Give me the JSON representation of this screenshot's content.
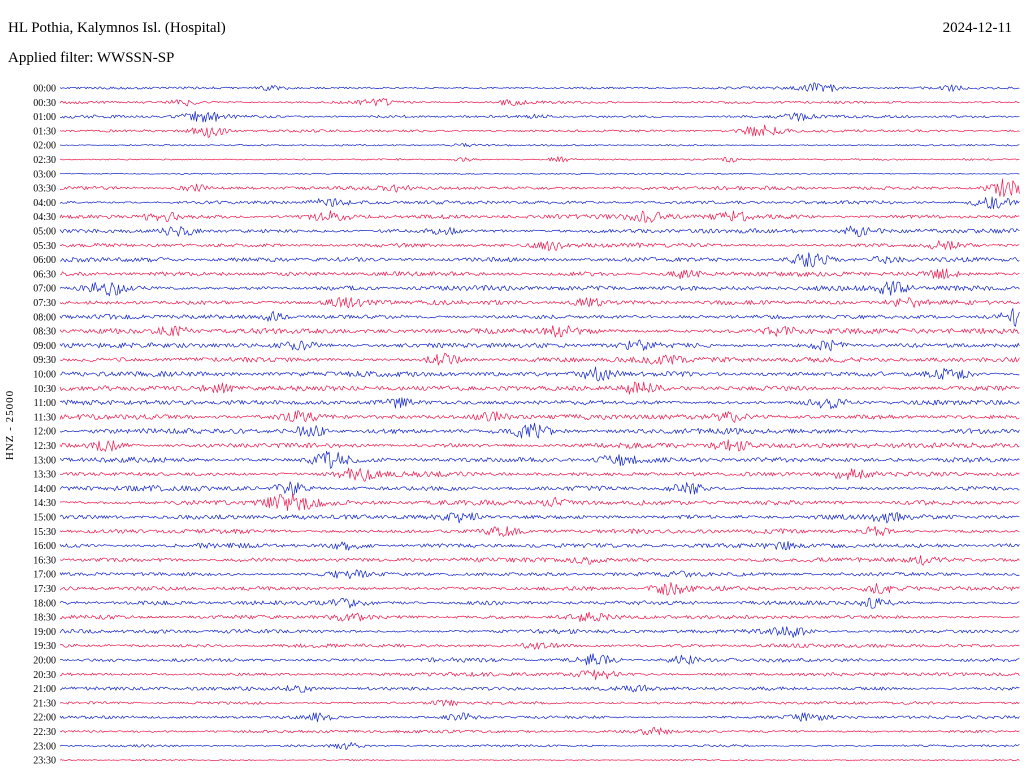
{
  "header": {
    "station_title": "HL Pothia, Kalymnos Isl. (Hospital)",
    "date": "2024-12-11",
    "filter_label": "Applied filter: WWSSN-SP"
  },
  "axis": {
    "channel_scale_label": "HNZ - 25000"
  },
  "colors": {
    "blue": "#1326cc",
    "red": "#ef1a4f",
    "background": "#ffffff",
    "text": "#000000"
  },
  "chart_data": {
    "type": "line",
    "title": "Helicorder seismogram, station HL Pothia, Kalymnos Isl. (Hospital), channel HNZ, scale 25000, WWSSN-SP filter, 2024-12-11",
    "x_span_minutes_per_row": 30,
    "row_color_cycle": [
      "blue",
      "red"
    ],
    "rows": [
      {
        "t": "00:00",
        "c": "blue",
        "a": 1.1,
        "b": [
          [
            0.22,
            3,
            0.01
          ],
          [
            0.79,
            6.5,
            0.012
          ],
          [
            0.93,
            2.5,
            0.008
          ]
        ]
      },
      {
        "t": "00:30",
        "c": "red",
        "a": 1.1,
        "b": [
          [
            0.13,
            3,
            0.01
          ],
          [
            0.33,
            4,
            0.012
          ],
          [
            0.47,
            3.5,
            0.01
          ]
        ]
      },
      {
        "t": "01:00",
        "c": "blue",
        "a": 1.2,
        "b": [
          [
            0.15,
            5,
            0.014
          ],
          [
            0.5,
            2.5,
            0.008
          ],
          [
            0.77,
            3,
            0.01
          ]
        ]
      },
      {
        "t": "01:30",
        "c": "red",
        "a": 1.1,
        "b": [
          [
            0.155,
            6,
            0.012
          ],
          [
            0.73,
            5,
            0.015
          ]
        ]
      },
      {
        "t": "02:00",
        "c": "blue",
        "a": 0.7,
        "b": [
          [
            0.42,
            1.5,
            0.008
          ]
        ]
      },
      {
        "t": "02:30",
        "c": "red",
        "a": 0.8,
        "b": [
          [
            0.42,
            2,
            0.008
          ],
          [
            0.52,
            2.5,
            0.008
          ],
          [
            0.7,
            2,
            0.008
          ]
        ]
      },
      {
        "t": "03:00",
        "c": "blue",
        "a": 0.6,
        "b": []
      },
      {
        "t": "03:30",
        "c": "red",
        "a": 1.5,
        "b": [
          [
            0.14,
            3,
            0.01
          ],
          [
            0.35,
            2.5,
            0.01
          ],
          [
            0.985,
            8,
            0.012
          ]
        ]
      },
      {
        "t": "04:00",
        "c": "blue",
        "a": 1.5,
        "b": [
          [
            0.28,
            4,
            0.012
          ],
          [
            0.97,
            6,
            0.014
          ]
        ]
      },
      {
        "t": "04:30",
        "c": "red",
        "a": 1.8,
        "b": [
          [
            0.105,
            5,
            0.012
          ],
          [
            0.28,
            5,
            0.012
          ],
          [
            0.61,
            4,
            0.014
          ],
          [
            0.7,
            5,
            0.014
          ]
        ]
      },
      {
        "t": "05:00",
        "c": "blue",
        "a": 1.8,
        "b": [
          [
            0.125,
            5,
            0.012
          ],
          [
            0.4,
            4,
            0.012
          ],
          [
            0.83,
            5,
            0.012
          ]
        ]
      },
      {
        "t": "05:30",
        "c": "red",
        "a": 1.8,
        "b": [
          [
            0.51,
            4,
            0.012
          ],
          [
            0.92,
            4,
            0.012
          ]
        ]
      },
      {
        "t": "06:00",
        "c": "blue",
        "a": 2.0,
        "b": [
          [
            0.78,
            7,
            0.012
          ],
          [
            0.86,
            4,
            0.01
          ]
        ]
      },
      {
        "t": "06:30",
        "c": "red",
        "a": 2.0,
        "b": [
          [
            0.65,
            4,
            0.012
          ],
          [
            0.92,
            4,
            0.01
          ]
        ]
      },
      {
        "t": "07:00",
        "c": "blue",
        "a": 2.0,
        "b": [
          [
            0.05,
            6,
            0.014
          ],
          [
            0.865,
            5,
            0.012
          ]
        ]
      },
      {
        "t": "07:30",
        "c": "red",
        "a": 2.0,
        "b": [
          [
            0.3,
            3.5,
            0.012
          ],
          [
            0.55,
            3.5,
            0.012
          ],
          [
            0.88,
            4,
            0.012
          ]
        ]
      },
      {
        "t": "08:00",
        "c": "blue",
        "a": 2.0,
        "b": [
          [
            0.22,
            4,
            0.01
          ],
          [
            0.995,
            8,
            0.01
          ]
        ]
      },
      {
        "t": "08:30",
        "c": "red",
        "a": 2.2,
        "b": [
          [
            0.12,
            4,
            0.012
          ],
          [
            0.52,
            4,
            0.012
          ],
          [
            0.75,
            4,
            0.012
          ]
        ]
      },
      {
        "t": "09:00",
        "c": "blue",
        "a": 2.2,
        "b": [
          [
            0.25,
            4,
            0.012
          ],
          [
            0.6,
            4,
            0.012
          ],
          [
            0.8,
            4,
            0.012
          ]
        ]
      },
      {
        "t": "09:30",
        "c": "red",
        "a": 2.2,
        "b": [
          [
            0.4,
            5,
            0.012
          ],
          [
            0.63,
            4,
            0.012
          ]
        ]
      },
      {
        "t": "10:00",
        "c": "blue",
        "a": 2.2,
        "b": [
          [
            0.56,
            5,
            0.012
          ],
          [
            0.93,
            5,
            0.012
          ]
        ]
      },
      {
        "t": "10:30",
        "c": "red",
        "a": 2.2,
        "b": [
          [
            0.165,
            5,
            0.012
          ],
          [
            0.605,
            7,
            0.012
          ]
        ]
      },
      {
        "t": "11:00",
        "c": "blue",
        "a": 2.2,
        "b": [
          [
            0.35,
            4,
            0.012
          ],
          [
            0.8,
            4,
            0.012
          ]
        ]
      },
      {
        "t": "11:30",
        "c": "red",
        "a": 2.2,
        "b": [
          [
            0.25,
            4,
            0.012
          ],
          [
            0.45,
            4,
            0.012
          ],
          [
            0.7,
            4,
            0.012
          ]
        ]
      },
      {
        "t": "12:00",
        "c": "blue",
        "a": 2.2,
        "b": [
          [
            0.26,
            5,
            0.012
          ],
          [
            0.49,
            6,
            0.012
          ]
        ]
      },
      {
        "t": "12:30",
        "c": "red",
        "a": 2.2,
        "b": [
          [
            0.05,
            5,
            0.012
          ],
          [
            0.7,
            6,
            0.012
          ]
        ]
      },
      {
        "t": "13:00",
        "c": "blue",
        "a": 2.2,
        "b": [
          [
            0.28,
            7,
            0.015
          ],
          [
            0.58,
            5,
            0.012
          ]
        ]
      },
      {
        "t": "13:30",
        "c": "red",
        "a": 2.2,
        "b": [
          [
            0.31,
            6,
            0.012
          ],
          [
            0.82,
            5,
            0.012
          ]
        ]
      },
      {
        "t": "14:00",
        "c": "blue",
        "a": 2.2,
        "b": [
          [
            0.24,
            6,
            0.012
          ],
          [
            0.655,
            5,
            0.012
          ]
        ]
      },
      {
        "t": "14:30",
        "c": "red",
        "a": 2.2,
        "b": [
          [
            0.24,
            7,
            0.018
          ],
          [
            0.52,
            4,
            0.012
          ]
        ]
      },
      {
        "t": "15:00",
        "c": "blue",
        "a": 2.0,
        "b": [
          [
            0.42,
            4,
            0.012
          ],
          [
            0.86,
            4,
            0.012
          ]
        ]
      },
      {
        "t": "15:30",
        "c": "red",
        "a": 2.0,
        "b": [
          [
            0.46,
            3.5,
            0.012
          ],
          [
            0.85,
            4,
            0.012
          ]
        ]
      },
      {
        "t": "16:00",
        "c": "blue",
        "a": 2.0,
        "b": [
          [
            0.3,
            3.5,
            0.012
          ],
          [
            0.75,
            3.5,
            0.012
          ]
        ]
      },
      {
        "t": "16:30",
        "c": "red",
        "a": 1.8,
        "b": [
          [
            0.55,
            3.5,
            0.012
          ],
          [
            0.9,
            3.5,
            0.012
          ]
        ]
      },
      {
        "t": "17:00",
        "c": "blue",
        "a": 1.8,
        "b": [
          [
            0.3,
            3,
            0.012
          ],
          [
            0.65,
            3,
            0.012
          ]
        ]
      },
      {
        "t": "17:30",
        "c": "red",
        "a": 1.8,
        "b": [
          [
            0.635,
            5,
            0.012
          ],
          [
            0.855,
            5,
            0.012
          ]
        ]
      },
      {
        "t": "18:00",
        "c": "blue",
        "a": 1.8,
        "b": [
          [
            0.3,
            3.5,
            0.012
          ],
          [
            0.85,
            3.5,
            0.012
          ]
        ]
      },
      {
        "t": "18:30",
        "c": "red",
        "a": 1.8,
        "b": [
          [
            0.3,
            3.5,
            0.012
          ],
          [
            0.55,
            3,
            0.012
          ]
        ]
      },
      {
        "t": "19:00",
        "c": "blue",
        "a": 1.8,
        "b": [
          [
            0.76,
            4.5,
            0.012
          ]
        ]
      },
      {
        "t": "19:30",
        "c": "red",
        "a": 1.5,
        "b": [
          [
            0.5,
            3,
            0.012
          ]
        ]
      },
      {
        "t": "20:00",
        "c": "blue",
        "a": 1.8,
        "b": [
          [
            0.56,
            4.5,
            0.012
          ],
          [
            0.65,
            4,
            0.012
          ]
        ]
      },
      {
        "t": "20:30",
        "c": "red",
        "a": 1.5,
        "b": [
          [
            0.56,
            5,
            0.012
          ]
        ]
      },
      {
        "t": "21:00",
        "c": "blue",
        "a": 1.5,
        "b": [
          [
            0.25,
            3.5,
            0.012
          ],
          [
            0.6,
            3,
            0.012
          ]
        ]
      },
      {
        "t": "21:30",
        "c": "red",
        "a": 1.2,
        "b": [
          [
            0.4,
            2.5,
            0.012
          ]
        ]
      },
      {
        "t": "22:00",
        "c": "blue",
        "a": 1.3,
        "b": [
          [
            0.27,
            3.5,
            0.012
          ],
          [
            0.42,
            3.5,
            0.012
          ],
          [
            0.78,
            3.5,
            0.012
          ]
        ]
      },
      {
        "t": "22:30",
        "c": "red",
        "a": 1.2,
        "b": [
          [
            0.62,
            3,
            0.012
          ]
        ]
      },
      {
        "t": "23:00",
        "c": "blue",
        "a": 1.1,
        "b": [
          [
            0.3,
            3.5,
            0.012
          ]
        ]
      },
      {
        "t": "23:30",
        "c": "red",
        "a": 0.6,
        "b": []
      }
    ]
  }
}
